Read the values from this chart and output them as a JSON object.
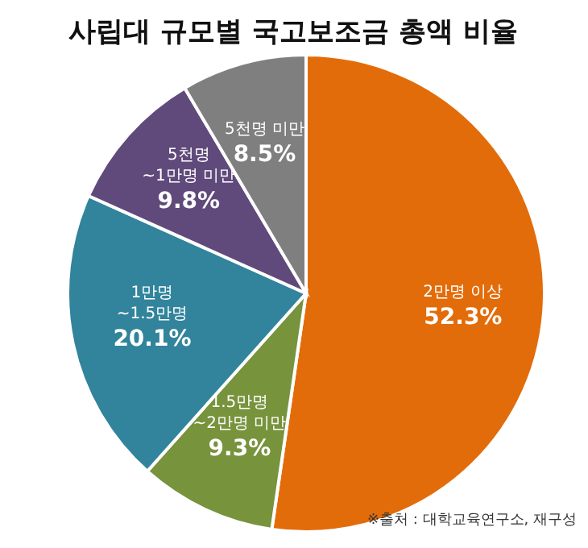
{
  "chart_data": {
    "type": "pie",
    "title": "사립대 규모별 국고보조금 총액 비율",
    "categories": [
      "2만명 이상",
      "1.5만명\n~2만명 미만",
      "1만명\n~1.5만명",
      "5천명\n~1만명 미만",
      "5천명 미만"
    ],
    "values": [
      52.3,
      9.3,
      20.1,
      9.8,
      8.5
    ],
    "value_labels": [
      "52.3%",
      "9.3%",
      "20.1%",
      "9.8%",
      "8.5%"
    ],
    "colors": [
      "#e36c0a",
      "#77933c",
      "#31849b",
      "#604a7b",
      "#7f7f7f"
    ],
    "annotations": [
      "※출처 : 대학교육연구소, 재구성"
    ]
  }
}
